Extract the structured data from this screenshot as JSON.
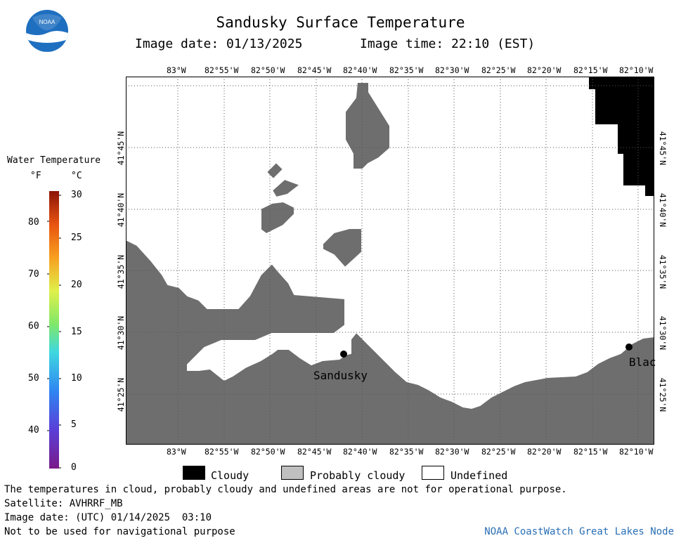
{
  "header": {
    "title": "Sandusky Surface Temperature",
    "image_date": "Image date: 01/13/2025",
    "image_time": "Image time: 22:10 (EST)",
    "logo_text": "NOAA"
  },
  "colorbar": {
    "title": "Water Temperature",
    "unit_f": "°F",
    "unit_c": "°C",
    "f_ticks": [
      "80",
      "70",
      "60",
      "50",
      "40"
    ],
    "c_ticks": [
      "30",
      "25",
      "20",
      "15",
      "10",
      "5",
      "0"
    ]
  },
  "map": {
    "lon_labels": [
      "83°W",
      "82°55'W",
      "82°50'W",
      "82°45'W",
      "82°40'W",
      "82°35'W",
      "82°30'W",
      "82°25'W",
      "82°20'W",
      "82°15'W",
      "82°10'W"
    ],
    "lat_labels": [
      "41°45'N",
      "41°40'N",
      "41°35'N",
      "41°30'N",
      "41°25'N"
    ],
    "cities": [
      {
        "name": "Sandusky"
      },
      {
        "name": "Blac"
      }
    ],
    "colors": {
      "land": "#6e6e6e",
      "cloudy": "#000000",
      "probably_cloudy": "#c0c0c0",
      "undefined": "#ffffff"
    }
  },
  "legend": {
    "cloudy": "Cloudy",
    "probably_cloudy": "Probably cloudy",
    "undefined": "Undefined"
  },
  "footer": {
    "note": "The temperatures in cloud, probably cloudy and undefined areas are not for operational purpose.",
    "satellite": "Satellite: AVHRRF_MB",
    "utc_date": "Image date: (UTC) 01/14/2025  03:10",
    "nav_warning": "Not to be used for navigational purpose",
    "credit": "NOAA CoastWatch Great Lakes Node"
  }
}
